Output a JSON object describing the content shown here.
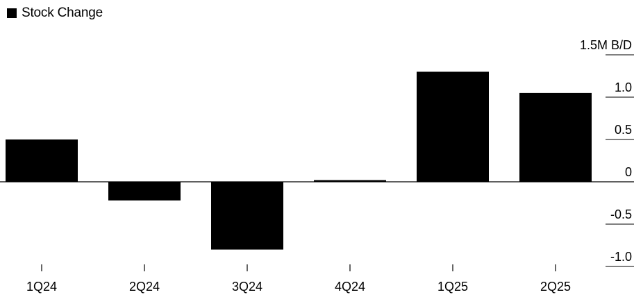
{
  "chart_data": {
    "type": "bar",
    "legend": [
      {
        "label": "Stock Change",
        "color": "#000000"
      }
    ],
    "legend_position": "top-left",
    "categories": [
      "1Q24",
      "2Q24",
      "3Q24",
      "4Q24",
      "1Q25",
      "2Q25"
    ],
    "series": [
      {
        "name": "Stock Change",
        "color": "#000000",
        "values": [
          0.5,
          -0.22,
          -0.8,
          0.02,
          1.3,
          1.05
        ]
      }
    ],
    "ylim": [
      -1.1,
      1.6
    ],
    "yticks": [
      1.5,
      1.0,
      0.5,
      0,
      -0.5,
      -1.0
    ],
    "ytick_labels": [
      "1.5M B/D",
      "1.0",
      "0.5",
      "0",
      "-0.5",
      "-1.0"
    ],
    "y_axis_side": "right",
    "title": "",
    "xlabel": "",
    "ylabel": "",
    "grid": false
  }
}
